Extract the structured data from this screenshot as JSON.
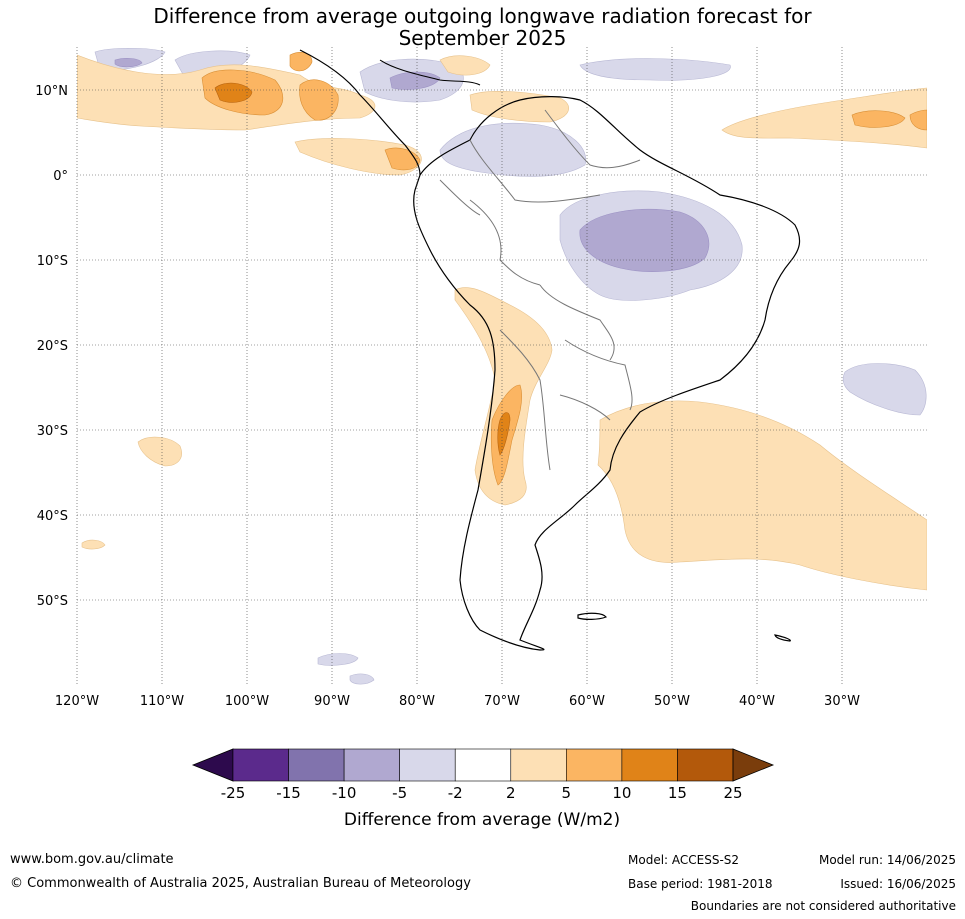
{
  "title_line1": "Difference from average outgoing longwave radiation forecast for",
  "title_line2": "September 2025",
  "lat_labels": [
    "10°N",
    "0°",
    "10°S",
    "20°S",
    "30°S",
    "40°S",
    "50°S"
  ],
  "lon_labels": [
    "120°W",
    "110°W",
    "100°W",
    "90°W",
    "80°W",
    "70°W",
    "60°W",
    "50°W",
    "40°W",
    "30°W"
  ],
  "colorbar": {
    "label": "Difference from average (W/m2)",
    "ticks": [
      "-25",
      "-15",
      "-10",
      "-5",
      "-2",
      "2",
      "5",
      "10",
      "15",
      "25"
    ],
    "colors": [
      "#2d0a4d",
      "#5b2a8c",
      "#8173ad",
      "#b0a8d0",
      "#d8d8ea",
      "#ffffff",
      "#fde0b5",
      "#fbb562",
      "#e08318",
      "#b3590b",
      "#7a3d0c"
    ]
  },
  "footer": {
    "website": "www.bom.gov.au/climate",
    "copyright": "© Commonwealth of Australia 2025, Australian Bureau of Meteorology",
    "model": "Model: ACCESS-S2",
    "base_period": "Base period: 1981-2018",
    "model_run": "Model run: 14/06/2025",
    "issued": "Issued: 16/06/2025",
    "disclaimer": "Boundaries are not considered authoritative"
  }
}
